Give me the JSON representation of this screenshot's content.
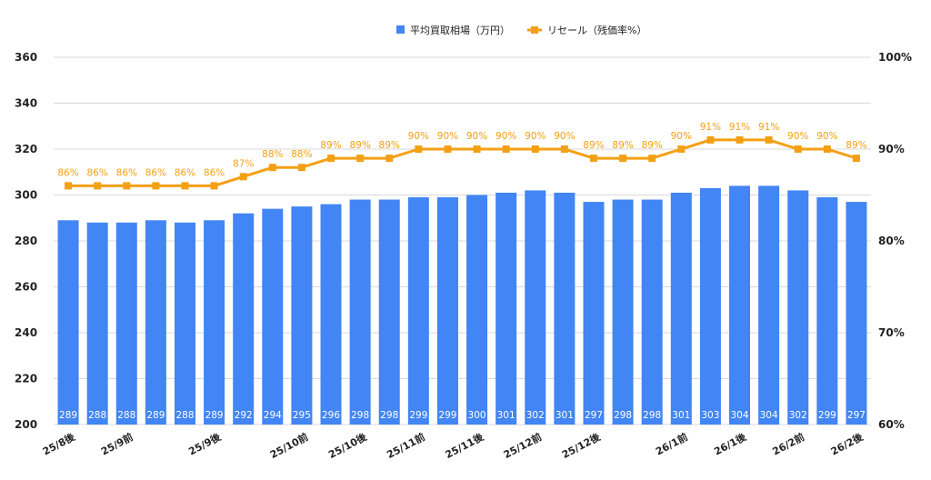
{
  "chart_data": {
    "type": "bar+line",
    "legend_position": "top",
    "grid": true,
    "categories": [
      "25/8後",
      "",
      "25/9前",
      "",
      "",
      "25/9後",
      "",
      "",
      "25/10前",
      "",
      "25/10後",
      "",
      "25/11前",
      "",
      "25/11後",
      "",
      "25/12前",
      "",
      "25/12後",
      "",
      "",
      "26/1前",
      "",
      "26/1後",
      "",
      "26/2前",
      "",
      "26/2後"
    ],
    "series": [
      {
        "name": "平均買取相場（万円）",
        "type": "bar",
        "axis": "left",
        "color": "#4285f4",
        "values": [
          289,
          288,
          288,
          289,
          288,
          289,
          292,
          294,
          295,
          296,
          298,
          298,
          299,
          299,
          300,
          301,
          302,
          301,
          297,
          298,
          298,
          301,
          303,
          304,
          304,
          302,
          299,
          297
        ]
      },
      {
        "name": "リセール（残価率%）",
        "type": "line",
        "axis": "right",
        "color": "#f4a014",
        "values": [
          86,
          86,
          86,
          86,
          86,
          86,
          87,
          88,
          88,
          89,
          89,
          89,
          90,
          90,
          90,
          90,
          90,
          90,
          89,
          89,
          89,
          90,
          91,
          91,
          91,
          90,
          90,
          89
        ],
        "value_suffix": "%"
      }
    ],
    "y_left": {
      "min": 200,
      "max": 360,
      "ticks": [
        "200",
        "220",
        "240",
        "260",
        "280",
        "300",
        "320",
        "340",
        "360"
      ]
    },
    "y_right": {
      "min": 60,
      "max": 100,
      "ticks": [
        "60%",
        "70%",
        "80%",
        "90%",
        "100%"
      ]
    }
  }
}
